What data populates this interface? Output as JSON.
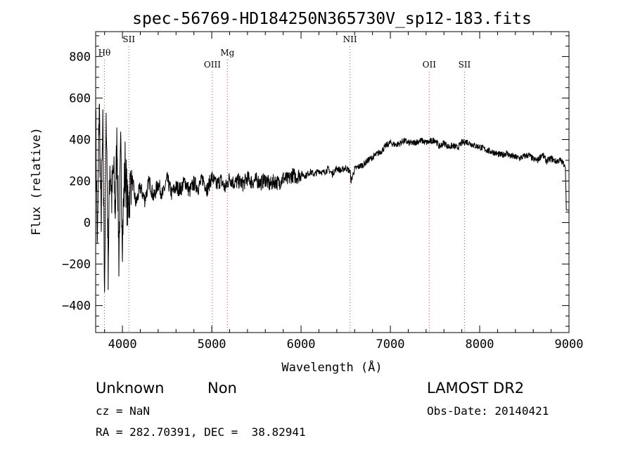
{
  "chart_data": {
    "type": "line",
    "title": "spec-56769-HD184250N365730V_sp12-183.fits",
    "xlabel": "Wavelength (Å)",
    "ylabel": "Flux (relative)",
    "xlim": [
      3700,
      9000
    ],
    "ylim": [
      -530,
      920
    ],
    "xticks": [
      4000,
      5000,
      6000,
      7000,
      8000,
      9000
    ],
    "yticks": [
      -400,
      -200,
      0,
      200,
      400,
      600,
      800
    ],
    "grid": false,
    "legend": "none",
    "line_color": "#000000",
    "marker_color": "#d04040",
    "lines": [
      {
        "label": "Hθ",
        "x": 3798,
        "row": 1
      },
      {
        "label": "SII",
        "x": 4072,
        "row": 0
      },
      {
        "label": "OIII",
        "x": 5007,
        "row": 2
      },
      {
        "label": "Mg",
        "x": 5175,
        "row": 1
      },
      {
        "label": "NII",
        "x": 6548,
        "row": 0
      },
      {
        "label": "OII",
        "x": 7435,
        "row": 2
      },
      {
        "label": "SII",
        "x": 7830,
        "row": 2
      }
    ],
    "series": [
      {
        "x": [
          3700,
          3720,
          3740,
          3760,
          3780,
          3800,
          3820,
          3840,
          3860,
          3880,
          3900,
          3920,
          3940,
          3960,
          3980,
          4000,
          4030,
          4060,
          4100,
          4150,
          4200,
          4250,
          4300,
          4350,
          4400,
          4450,
          4500,
          4550,
          4600,
          4650,
          4700,
          4750,
          4800,
          4850,
          4900,
          4950,
          5000,
          5050,
          5100,
          5150,
          5200,
          5250,
          5300,
          5350,
          5400,
          5450,
          5500,
          5550,
          5600,
          5650,
          5700,
          5750,
          5800,
          5850,
          5900,
          5950,
          6000,
          6050,
          6100,
          6150,
          6200,
          6250,
          6300,
          6350,
          6400,
          6450,
          6500,
          6550,
          6560,
          6600,
          6650,
          6700,
          6750,
          6800,
          6850,
          6900,
          6950,
          7000,
          7050,
          7100,
          7150,
          7200,
          7250,
          7300,
          7350,
          7400,
          7450,
          7500,
          7550,
          7600,
          7650,
          7700,
          7750,
          7800,
          7850,
          7900,
          7950,
          8000,
          8050,
          8100,
          8150,
          8200,
          8250,
          8300,
          8350,
          8400,
          8450,
          8500,
          8550,
          8600,
          8650,
          8700,
          8750,
          8800,
          8850,
          8900,
          8950,
          8960,
          8970,
          8980,
          9000
        ],
        "y": [
          520,
          -150,
          600,
          0,
          430,
          -280,
          540,
          -200,
          300,
          120,
          250,
          60,
          420,
          -160,
          330,
          -50,
          280,
          50,
          230,
          90,
          170,
          110,
          200,
          120,
          190,
          130,
          210,
          140,
          170,
          160,
          200,
          150,
          190,
          170,
          210,
          160,
          220,
          180,
          205,
          165,
          215,
          190,
          200,
          185,
          215,
          195,
          205,
          190,
          210,
          180,
          200,
          190,
          215,
          205,
          230,
          220,
          235,
          225,
          245,
          232,
          250,
          240,
          258,
          235,
          262,
          250,
          265,
          245,
          200,
          258,
          270,
          280,
          300,
          315,
          330,
          345,
          370,
          385,
          375,
          380,
          395,
          385,
          382,
          390,
          395,
          385,
          390,
          400,
          365,
          385,
          365,
          370,
          360,
          385,
          390,
          380,
          370,
          365,
          355,
          345,
          340,
          330,
          325,
          335,
          320,
          315,
          310,
          320,
          325,
          305,
          300,
          330,
          295,
          310,
          295,
          300,
          280,
          260,
          60,
          60,
          60
        ]
      }
    ]
  },
  "footer": {
    "object_type": "Unknown",
    "subclass": "Non",
    "survey": "LAMOST DR2",
    "redshift": "cz = NaN",
    "obs_date": "Obs-Date: 20140421",
    "coords": "RA = 282.70391, DEC =  38.82941"
  }
}
